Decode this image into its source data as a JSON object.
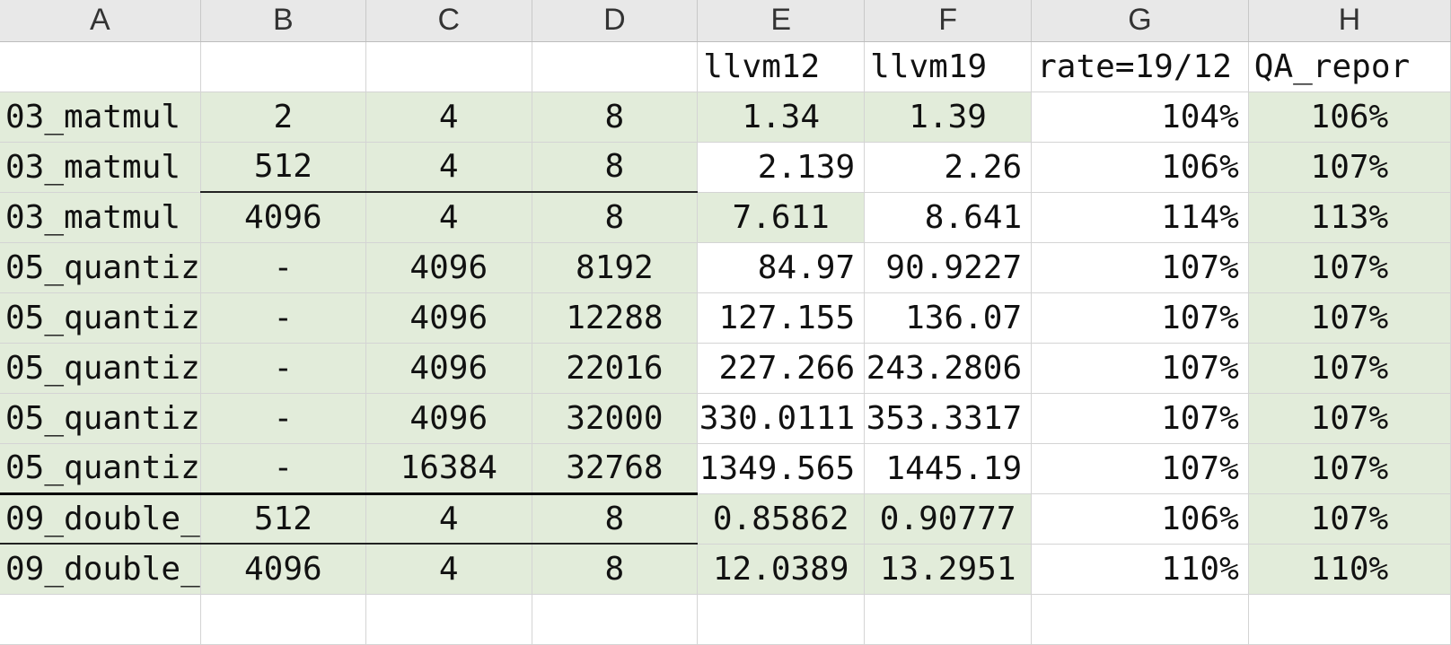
{
  "columns": [
    "A",
    "B",
    "C",
    "D",
    "E",
    "F",
    "G",
    "H"
  ],
  "header_row": [
    "",
    "",
    "",
    "",
    "llvm12",
    "llvm19",
    "rate=19/12",
    "QA_repor"
  ],
  "rows": [
    [
      "03_matmul",
      "2",
      "4",
      "8",
      "1.34",
      "1.39",
      "104%",
      "106%"
    ],
    [
      "03_matmul",
      "512",
      "4",
      "8",
      "2.139",
      "2.26",
      "106%",
      "107%"
    ],
    [
      "03_matmul",
      "4096",
      "4",
      "8",
      "7.611",
      "8.641",
      "114%",
      "113%"
    ],
    [
      "05_quantiz",
      "-",
      "4096",
      "8192",
      "84.97",
      "90.9227",
      "107%",
      "107%"
    ],
    [
      "05_quantiz",
      "-",
      "4096",
      "12288",
      "127.155",
      "136.07",
      "107%",
      "107%"
    ],
    [
      "05_quantiz",
      "-",
      "4096",
      "22016",
      "227.266",
      "243.2806",
      "107%",
      "107%"
    ],
    [
      "05_quantiz",
      "-",
      "4096",
      "32000",
      "330.0111",
      "353.3317",
      "107%",
      "107%"
    ],
    [
      "05_quantiz",
      "-",
      "16384",
      "32768",
      "1349.565",
      "1445.19",
      "107%",
      "107%"
    ],
    [
      "09_double_",
      "512",
      "4",
      "8",
      "0.85862",
      "0.90777",
      "106%",
      "107%"
    ],
    [
      "09_double_",
      "4096",
      "4",
      "8",
      "12.0389",
      "13.2951",
      "110%",
      "110%"
    ]
  ],
  "colors": {
    "fill_green": "#e2ecda",
    "header_bg": "#e8e8e8",
    "grid": "#d4d4d4"
  }
}
